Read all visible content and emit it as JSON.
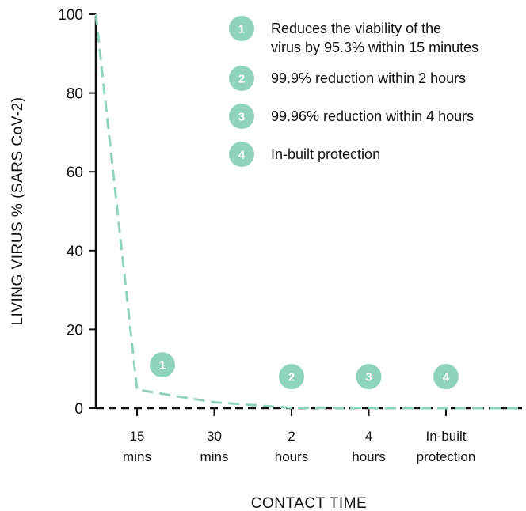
{
  "chart_data": {
    "type": "line",
    "title": "",
    "xlabel": "CONTACT TIME",
    "ylabel": "LIVING VIRUS % (SARS CoV-2)",
    "ylim": [
      0,
      100
    ],
    "yticks": [
      "0",
      "20",
      "40",
      "60",
      "80",
      "100"
    ],
    "categories": [
      {
        "line1": "15",
        "line2": "mins"
      },
      {
        "line1": "30",
        "line2": "mins"
      },
      {
        "line1": "2",
        "line2": "hours"
      },
      {
        "line1": "4",
        "line2": "hours"
      },
      {
        "line1": "In-built",
        "line2": "protection"
      }
    ],
    "series": [
      {
        "color": "#8fd3bf",
        "style": "dashed",
        "points": [
          {
            "x": "0",
            "y": 100
          },
          {
            "x": "15 mins",
            "y": 4.7
          },
          {
            "x": "30 mins",
            "y": 1.5
          },
          {
            "x": "2 hours",
            "y": 0.1
          },
          {
            "x": "4 hours",
            "y": 0.04
          },
          {
            "x": "In-built protection",
            "y": 0
          },
          {
            "x": "end",
            "y": 0
          }
        ]
      }
    ],
    "markers": [
      {
        "number": "1",
        "category": "15 mins",
        "y": 11
      },
      {
        "number": "2",
        "category": "2 hours",
        "y": 8
      },
      {
        "number": "3",
        "category": "4 hours",
        "y": 8
      },
      {
        "number": "4",
        "category": "In-built protection",
        "y": 8
      }
    ],
    "legend": {
      "placement": "top-right",
      "items": [
        {
          "number": "1",
          "lines": [
            "Reduces the viability of the",
            "virus by 95.3% within 15 minutes"
          ]
        },
        {
          "number": "2",
          "lines": [
            "99.9% reduction within 2 hours"
          ]
        },
        {
          "number": "3",
          "lines": [
            "99.96% reduction within 4 hours"
          ]
        },
        {
          "number": "4",
          "lines": [
            "In-built protection"
          ]
        }
      ]
    },
    "colors": {
      "accent": "#8fd3bf",
      "axis": "#111111",
      "baseline_dash": "#111111"
    },
    "grid": false
  }
}
